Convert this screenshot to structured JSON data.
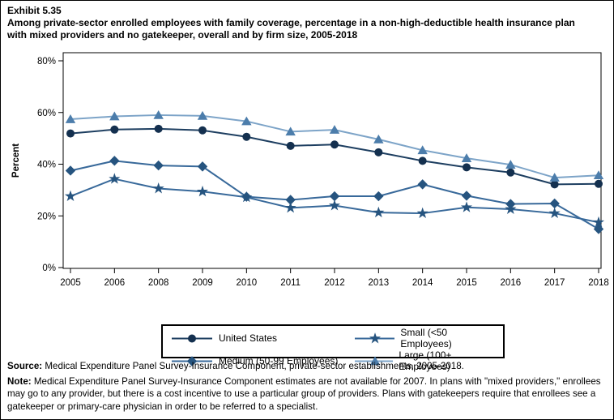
{
  "header": {
    "exhibit_label": "Exhibit 5.35",
    "title": "Among private-sector enrolled employees with family coverage, percentage in a non-high-deductible health insurance plan with mixed providers and no gatekeeper, overall and by firm size, 2005-2018"
  },
  "chart_data": {
    "type": "line",
    "title": "Among private-sector enrolled employees with family coverage, percentage in a non-high-deductible health insurance plan with mixed providers and no gatekeeper, overall and by firm size, 2005-2018",
    "xlabel": "",
    "ylabel": "Percent",
    "ylim": [
      0,
      83
    ],
    "yticks": [
      0,
      20,
      40,
      60,
      80
    ],
    "ytick_suffix": "%",
    "grid": false,
    "legend_position": "bottom",
    "categories": [
      "2005",
      "2006",
      "2008",
      "2009",
      "2010",
      "2011",
      "2012",
      "2013",
      "2014",
      "2015",
      "2016",
      "2017",
      "2018"
    ],
    "series": [
      {
        "name": "United States",
        "marker": "circle",
        "marker_color": "#14304f",
        "line_color": "#1d3e60",
        "values": [
          51.9,
          53.4,
          53.7,
          53.1,
          50.6,
          47.1,
          47.6,
          44.6,
          41.3,
          38.8,
          36.8,
          32.2,
          32.4
        ]
      },
      {
        "name": "Medium (50-99 Employees)",
        "marker": "diamond",
        "marker_color": "#26547f",
        "line_color": "#38699a",
        "values": [
          37.5,
          41.3,
          39.5,
          39.1,
          27.4,
          26.2,
          27.6,
          27.6,
          32.2,
          27.8,
          24.6,
          24.8,
          14.9
        ]
      },
      {
        "name": "Small (<50 Employees)",
        "marker": "star",
        "marker_color": "#26547f",
        "line_color": "#38699a",
        "values": [
          27.6,
          34.3,
          30.6,
          29.4,
          27.2,
          23.1,
          24.0,
          21.3,
          21.0,
          23.3,
          22.6,
          21.0,
          17.5
        ]
      },
      {
        "name": "Large (100+ Employees)",
        "marker": "triangle",
        "marker_color": "#4c7dab",
        "line_color": "#7da4c8",
        "values": [
          57.4,
          58.5,
          59.0,
          58.7,
          56.6,
          52.6,
          53.3,
          49.6,
          45.4,
          42.3,
          39.8,
          34.8,
          35.7
        ]
      }
    ],
    "legend_order": [
      "United States",
      "Small (<50 Employees)",
      "Medium (50-99 Employees)",
      "Large (100+ Employees)"
    ]
  },
  "footer": {
    "source_label": "Source:",
    "source_text": " Medical Expenditure Panel Survey-Insurance Component, private-sector establishments, 2005-2018.",
    "note_label": "Note:",
    "note_text": " Medical Expenditure Panel Survey-Insurance Component estimates are not available for 2007. In plans with \"mixed providers,\" enrollees may go to any provider, but there is a cost incentive to use a particular group of providers. Plans with gatekeepers require that enrollees see a gatekeeper or primary-care physician in order to be referred to a specialist."
  }
}
